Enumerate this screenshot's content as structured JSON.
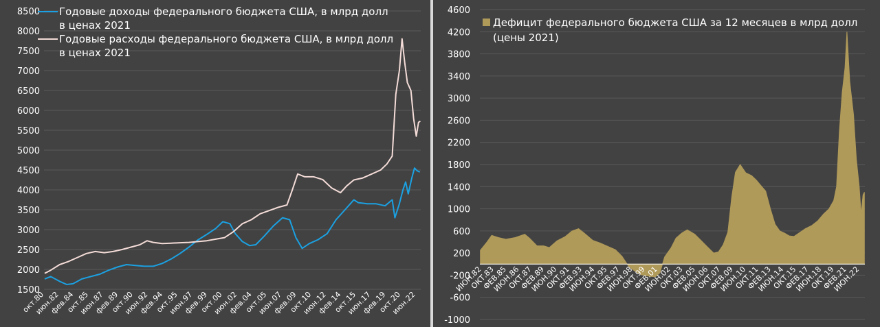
{
  "chart_data": [
    {
      "type": "line",
      "xlabel": "",
      "ylabel": "",
      "ylim": [
        1500,
        8500
      ],
      "yticks": [
        1500,
        2000,
        2500,
        3000,
        3500,
        4000,
        4500,
        5000,
        5500,
        6000,
        6500,
        7000,
        7500,
        8000,
        8500
      ],
      "xlim": [
        1980.75,
        2023.0
      ],
      "x_tick_labels": [
        {
          "label": "окт.80",
          "x": 1980.75
        },
        {
          "label": "июн.82",
          "x": 1982.42
        },
        {
          "label": "фев.84",
          "x": 1984.08
        },
        {
          "label": "окт.85",
          "x": 1985.75
        },
        {
          "label": "июн.87",
          "x": 1987.42
        },
        {
          "label": "фев.89",
          "x": 1989.08
        },
        {
          "label": "окт.90",
          "x": 1990.75
        },
        {
          "label": "июн.92",
          "x": 1992.42
        },
        {
          "label": "фев.94",
          "x": 1994.08
        },
        {
          "label": "окт.95",
          "x": 1995.75
        },
        {
          "label": "июн.97",
          "x": 1997.42
        },
        {
          "label": "фев.99",
          "x": 1999.08
        },
        {
          "label": "окт.00",
          "x": 2000.75
        },
        {
          "label": "июн.02",
          "x": 2002.42
        },
        {
          "label": "фев.04",
          "x": 2004.08
        },
        {
          "label": "окт.05",
          "x": 2005.75
        },
        {
          "label": "июн.07",
          "x": 2007.42
        },
        {
          "label": "фев.09",
          "x": 2009.08
        },
        {
          "label": "окт.10",
          "x": 2010.75
        },
        {
          "label": "июн.12",
          "x": 2012.42
        },
        {
          "label": "фев.14",
          "x": 2014.08
        },
        {
          "label": "окт.15",
          "x": 2015.75
        },
        {
          "label": "июн.17",
          "x": 2017.42
        },
        {
          "label": "фев.19",
          "x": 2019.08
        },
        {
          "label": "окт.20",
          "x": 2020.75
        },
        {
          "label": "июн.22",
          "x": 2022.42
        }
      ],
      "series": [
        {
          "name": "Годовые доходы федерального бюджета США, в млрд долл в ценах 2021",
          "color": "#1ba1e2",
          "points": [
            [
              1980.83,
              1760
            ],
            [
              1981.5,
              1820
            ],
            [
              1982.5,
              1700
            ],
            [
              1983.3,
              1620
            ],
            [
              1984.0,
              1640
            ],
            [
              1985.0,
              1760
            ],
            [
              1986.0,
              1820
            ],
            [
              1987.0,
              1880
            ],
            [
              1988.0,
              1980
            ],
            [
              1989.0,
              2060
            ],
            [
              1990.0,
              2120
            ],
            [
              1991.0,
              2100
            ],
            [
              1992.0,
              2080
            ],
            [
              1993.0,
              2080
            ],
            [
              1994.0,
              2150
            ],
            [
              1995.0,
              2260
            ],
            [
              1996.0,
              2400
            ],
            [
              1997.0,
              2560
            ],
            [
              1998.0,
              2740
            ],
            [
              1999.0,
              2880
            ],
            [
              2000.0,
              3030
            ],
            [
              2000.8,
              3200
            ],
            [
              2001.6,
              3150
            ],
            [
              2002.2,
              2900
            ],
            [
              2003.0,
              2700
            ],
            [
              2003.8,
              2600
            ],
            [
              2004.5,
              2620
            ],
            [
              2005.5,
              2850
            ],
            [
              2006.5,
              3100
            ],
            [
              2007.5,
              3300
            ],
            [
              2008.3,
              3250
            ],
            [
              2009.0,
              2800
            ],
            [
              2009.7,
              2530
            ],
            [
              2010.5,
              2650
            ],
            [
              2011.5,
              2750
            ],
            [
              2012.5,
              2900
            ],
            [
              2013.5,
              3250
            ],
            [
              2014.5,
              3500
            ],
            [
              2015.5,
              3750
            ],
            [
              2016.0,
              3680
            ],
            [
              2017.0,
              3650
            ],
            [
              2018.0,
              3650
            ],
            [
              2019.0,
              3600
            ],
            [
              2019.8,
              3750
            ],
            [
              2020.1,
              3300
            ],
            [
              2020.6,
              3650
            ],
            [
              2021.0,
              4000
            ],
            [
              2021.3,
              4200
            ],
            [
              2021.6,
              3900
            ],
            [
              2022.0,
              4300
            ],
            [
              2022.3,
              4550
            ],
            [
              2022.6,
              4480
            ],
            [
              2022.9,
              4450
            ]
          ]
        },
        {
          "name": "Годовые расходы федерального бюджета США, в млрд долл в ценах 2021",
          "color": "#f4dcd8",
          "points": [
            [
              1980.83,
              1900
            ],
            [
              1981.5,
              1980
            ],
            [
              1982.5,
              2120
            ],
            [
              1983.5,
              2200
            ],
            [
              1984.5,
              2300
            ],
            [
              1985.5,
              2400
            ],
            [
              1986.5,
              2450
            ],
            [
              1987.5,
              2420
            ],
            [
              1988.5,
              2450
            ],
            [
              1989.5,
              2500
            ],
            [
              1990.5,
              2560
            ],
            [
              1991.5,
              2620
            ],
            [
              1992.3,
              2720
            ],
            [
              1993.0,
              2680
            ],
            [
              1994.0,
              2650
            ],
            [
              1995.0,
              2660
            ],
            [
              1996.0,
              2670
            ],
            [
              1997.0,
              2680
            ],
            [
              1998.0,
              2700
            ],
            [
              1999.0,
              2720
            ],
            [
              2000.0,
              2760
            ],
            [
              2001.0,
              2800
            ],
            [
              2002.0,
              2950
            ],
            [
              2003.0,
              3150
            ],
            [
              2004.0,
              3250
            ],
            [
              2005.0,
              3400
            ],
            [
              2006.0,
              3480
            ],
            [
              2007.0,
              3560
            ],
            [
              2008.0,
              3620
            ],
            [
              2008.6,
              4000
            ],
            [
              2009.2,
              4400
            ],
            [
              2010.0,
              4330
            ],
            [
              2011.0,
              4330
            ],
            [
              2012.0,
              4260
            ],
            [
              2013.0,
              4050
            ],
            [
              2014.0,
              3930
            ],
            [
              2014.7,
              4100
            ],
            [
              2015.5,
              4250
            ],
            [
              2016.5,
              4300
            ],
            [
              2017.5,
              4400
            ],
            [
              2018.5,
              4500
            ],
            [
              2019.2,
              4650
            ],
            [
              2019.8,
              4850
            ],
            [
              2020.2,
              6400
            ],
            [
              2020.6,
              7000
            ],
            [
              2020.9,
              7800
            ],
            [
              2021.2,
              7200
            ],
            [
              2021.5,
              6700
            ],
            [
              2021.9,
              6500
            ],
            [
              2022.2,
              5800
            ],
            [
              2022.5,
              5350
            ],
            [
              2022.75,
              5700
            ],
            [
              2022.95,
              5730
            ]
          ]
        }
      ]
    },
    {
      "type": "area",
      "title": "",
      "xlabel": "",
      "ylabel": "",
      "ylim": [
        -1000,
        4600
      ],
      "yticks": [
        -1000,
        -600,
        -200,
        200,
        600,
        1000,
        1400,
        1800,
        2200,
        2600,
        3000,
        3400,
        3800,
        4200,
        4600
      ],
      "xlim": [
        1982.25,
        2023.0
      ],
      "x_tick_labels": [
        {
          "label": "ИЮН.82",
          "x": 1982.42
        },
        {
          "label": "ОКТ.83",
          "x": 1983.75
        },
        {
          "label": "ФЕВ.85",
          "x": 1985.08
        },
        {
          "label": "ИЮН.86",
          "x": 1986.42
        },
        {
          "label": "ОКТ.87",
          "x": 1987.75
        },
        {
          "label": "ФЕВ.89",
          "x": 1989.08
        },
        {
          "label": "ИЮН.90",
          "x": 1990.42
        },
        {
          "label": "ОКТ.91",
          "x": 1991.75
        },
        {
          "label": "ФЕВ.93",
          "x": 1993.08
        },
        {
          "label": "ИЮН.94",
          "x": 1994.42
        },
        {
          "label": "ОКТ.95",
          "x": 1995.75
        },
        {
          "label": "ФЕВ.97",
          "x": 1997.08
        },
        {
          "label": "ИЮН.98",
          "x": 1998.42
        },
        {
          "label": "ОКТ.99",
          "x": 1999.75
        },
        {
          "label": "ФЕВ.01",
          "x": 2001.08
        },
        {
          "label": "ИЮН.02",
          "x": 2002.42
        },
        {
          "label": "ОКТ.03",
          "x": 2003.75
        },
        {
          "label": "ФЕВ.05",
          "x": 2005.08
        },
        {
          "label": "ИЮН.06",
          "x": 2006.42
        },
        {
          "label": "ОКТ.07",
          "x": 2007.75
        },
        {
          "label": "ФЕВ.09",
          "x": 2009.08
        },
        {
          "label": "ИЮН.10",
          "x": 2010.42
        },
        {
          "label": "ОКТ.11",
          "x": 2011.75
        },
        {
          "label": "ФЕВ.13",
          "x": 2013.08
        },
        {
          "label": "ИЮН.14",
          "x": 2014.42
        },
        {
          "label": "ОКТ.15",
          "x": 2015.75
        },
        {
          "label": "ФЕВ.17",
          "x": 2017.08
        },
        {
          "label": "ИЮН.18",
          "x": 2018.42
        },
        {
          "label": "ОКТ.19",
          "x": 2019.75
        },
        {
          "label": "ФЕВ.21",
          "x": 2021.08
        },
        {
          "label": "ИЮН.22",
          "x": 2022.42
        }
      ],
      "series": [
        {
          "name": "Дефицит федерального бюджета США за 12 месяцев в млрд долл (цены 2021)",
          "color": "#b09a5a",
          "points": [
            [
              1982.3,
              250
            ],
            [
              1983.0,
              400
            ],
            [
              1983.5,
              520
            ],
            [
              1984.2,
              480
            ],
            [
              1985.0,
              450
            ],
            [
              1986.0,
              480
            ],
            [
              1987.0,
              540
            ],
            [
              1987.5,
              470
            ],
            [
              1988.3,
              330
            ],
            [
              1989.0,
              330
            ],
            [
              1989.6,
              300
            ],
            [
              1990.4,
              420
            ],
            [
              1991.3,
              500
            ],
            [
              1992.0,
              600
            ],
            [
              1992.7,
              640
            ],
            [
              1993.3,
              560
            ],
            [
              1994.2,
              430
            ],
            [
              1995.0,
              380
            ],
            [
              1995.8,
              320
            ],
            [
              1996.6,
              260
            ],
            [
              1997.3,
              140
            ],
            [
              1998.0,
              -40
            ],
            [
              1998.6,
              -120
            ],
            [
              1999.3,
              -190
            ],
            [
              2000.2,
              -220
            ],
            [
              2000.8,
              -230
            ],
            [
              2001.3,
              -160
            ],
            [
              2001.8,
              130
            ],
            [
              2002.5,
              300
            ],
            [
              2003.0,
              470
            ],
            [
              2003.6,
              560
            ],
            [
              2004.2,
              620
            ],
            [
              2005.0,
              540
            ],
            [
              2005.7,
              420
            ],
            [
              2006.4,
              300
            ],
            [
              2007.0,
              200
            ],
            [
              2007.5,
              220
            ],
            [
              2008.0,
              350
            ],
            [
              2008.5,
              580
            ],
            [
              2008.9,
              1200
            ],
            [
              2009.3,
              1660
            ],
            [
              2009.8,
              1800
            ],
            [
              2010.4,
              1650
            ],
            [
              2011.0,
              1600
            ],
            [
              2011.5,
              1520
            ],
            [
              2012.0,
              1420
            ],
            [
              2012.5,
              1320
            ],
            [
              2013.0,
              1000
            ],
            [
              2013.5,
              720
            ],
            [
              2014.0,
              600
            ],
            [
              2014.5,
              560
            ],
            [
              2015.0,
              510
            ],
            [
              2015.5,
              500
            ],
            [
              2016.0,
              560
            ],
            [
              2016.7,
              640
            ],
            [
              2017.4,
              700
            ],
            [
              2018.0,
              780
            ],
            [
              2018.6,
              900
            ],
            [
              2019.2,
              1000
            ],
            [
              2019.7,
              1150
            ],
            [
              2020.0,
              1400
            ],
            [
              2020.3,
              2400
            ],
            [
              2020.6,
              3100
            ],
            [
              2020.9,
              3550
            ],
            [
              2021.1,
              4200
            ],
            [
              2021.4,
              3300
            ],
            [
              2021.8,
              2700
            ],
            [
              2022.1,
              1900
            ],
            [
              2022.4,
              1400
            ],
            [
              2022.6,
              900
            ],
            [
              2022.8,
              1250
            ],
            [
              2022.95,
              1300
            ]
          ]
        }
      ]
    }
  ]
}
